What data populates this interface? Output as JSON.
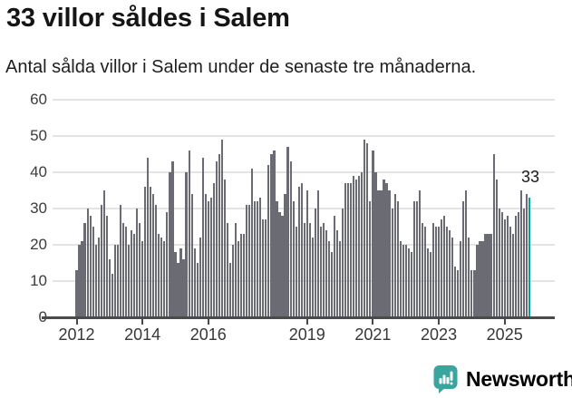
{
  "header": {
    "title": "33 villor såldes i Salem",
    "subtitle": "Antal sålda villor i Salem under de senaste tre månaderna."
  },
  "chart_data": {
    "type": "bar",
    "title": "33 villor såldes i Salem",
    "xlabel": "",
    "ylabel": "",
    "x_start": "2012-01",
    "x_end": "2025-10",
    "start_year": 2012,
    "categories_note": "monthly values, rolling three-month house sales",
    "values": [
      13,
      20,
      21,
      26,
      30,
      28,
      25,
      20,
      22,
      31,
      35,
      28,
      16,
      12,
      20,
      20,
      31,
      26,
      25,
      20,
      24,
      23,
      30,
      26,
      21,
      36,
      44,
      36,
      34,
      31,
      23,
      22,
      21,
      29,
      40,
      43,
      18,
      15,
      19,
      16,
      40,
      46,
      34,
      19,
      15,
      22,
      44,
      34,
      32,
      33,
      37,
      43,
      45,
      49,
      38,
      26,
      15,
      20,
      26,
      21,
      23,
      23,
      31,
      31,
      41,
      32,
      32,
      33,
      27,
      27,
      42,
      45,
      46,
      32,
      29,
      28,
      34,
      47,
      43,
      32,
      25,
      36,
      37,
      26,
      35,
      26,
      22,
      30,
      35,
      25,
      26,
      24,
      21,
      18,
      28,
      24,
      21,
      30,
      37,
      37,
      37,
      39,
      38,
      39,
      40,
      49,
      48,
      32,
      46,
      40,
      35,
      35,
      38,
      37,
      35,
      30,
      34,
      32,
      21,
      20,
      20,
      19,
      18,
      32,
      32,
      35,
      26,
      25,
      19,
      18,
      26,
      25,
      25,
      27,
      28,
      25,
      24,
      22,
      14,
      13,
      21,
      32,
      35,
      22,
      13,
      13,
      20,
      21,
      21,
      23,
      23,
      23,
      45,
      38,
      30,
      29,
      27,
      28,
      25,
      23,
      28,
      29,
      35,
      30,
      34,
      33
    ],
    "last_value": 33,
    "highlight_last": true,
    "annotation": {
      "text": "33"
    },
    "y_axis": {
      "ticks": [
        0,
        10,
        20,
        30,
        40,
        50,
        60
      ],
      "lim": [
        0,
        62
      ]
    },
    "x_axis": {
      "tick_years": [
        "2012",
        "2014",
        "2016",
        "2019",
        "2021",
        "2023",
        "2025"
      ]
    },
    "grid": true,
    "legend": false,
    "colors": {
      "bar": "#6b6b73",
      "highlight": "#00a2a2",
      "gridline": "#e4e4e4",
      "axis": "#4a4a4a"
    }
  },
  "footer": {
    "brand": "Newsworthy",
    "brand_color": "#3aa49f"
  }
}
